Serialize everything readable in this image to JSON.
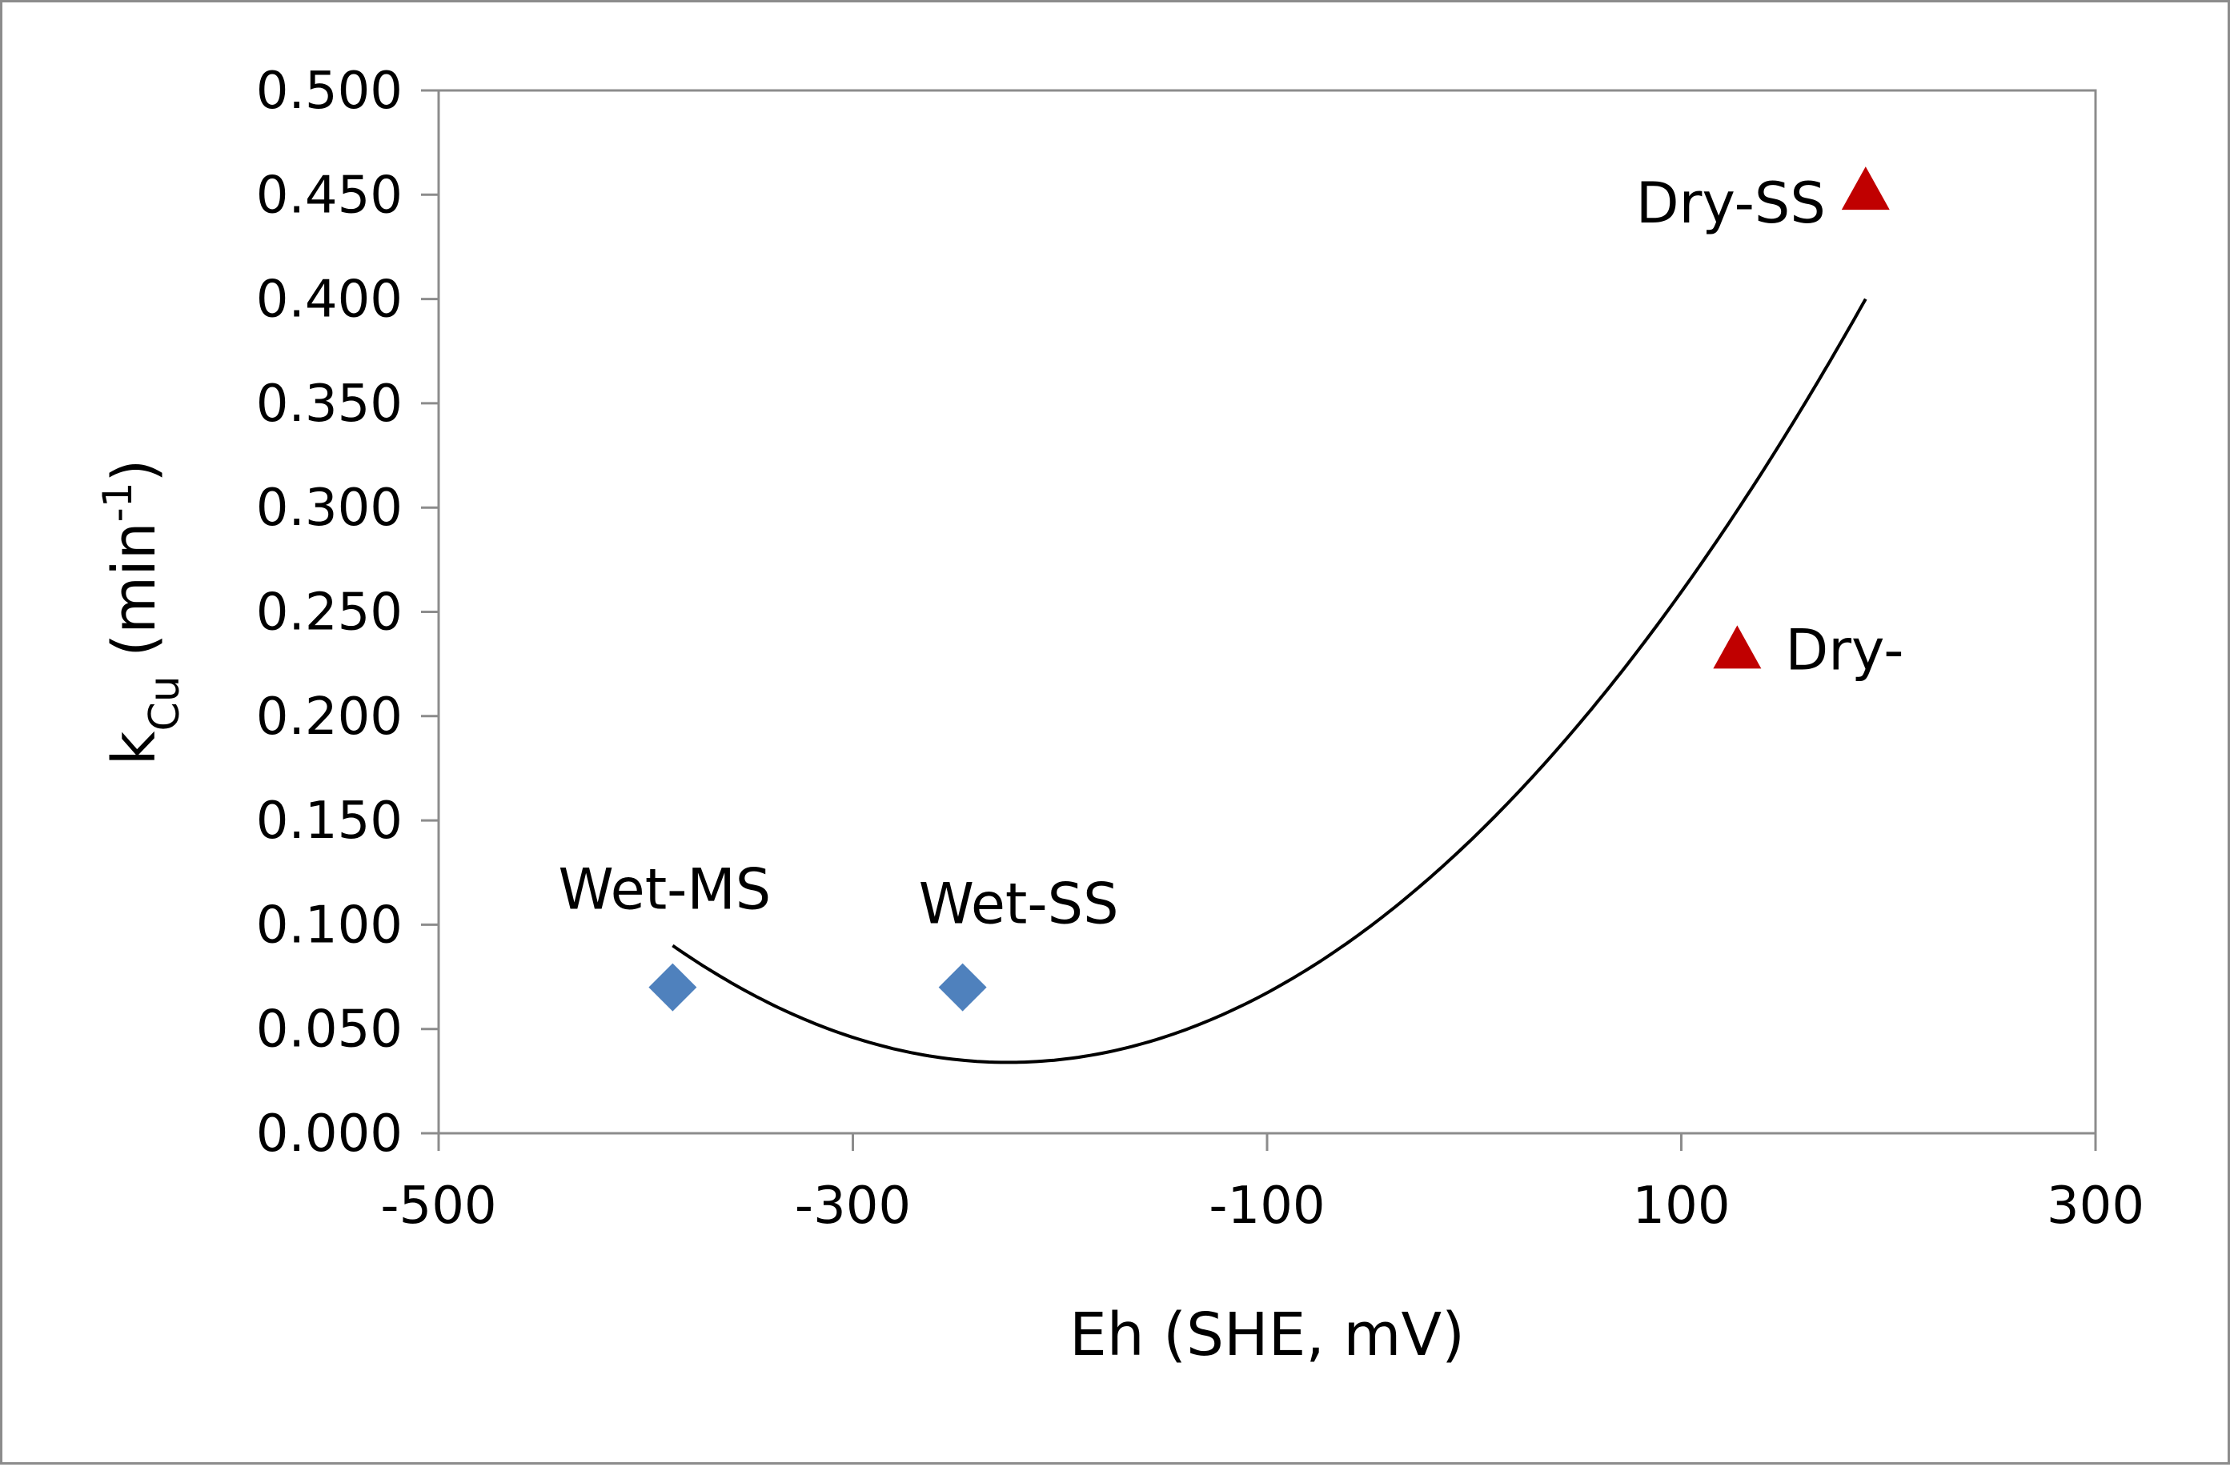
{
  "chart_data": {
    "type": "scatter",
    "title": "",
    "xlabel": "Eh (SHE, mV)",
    "ylabel_main": "k",
    "ylabel_sub": "Cu",
    "ylabel_unit_open": " (min",
    "ylabel_sup": "-1",
    "ylabel_unit_close": ")",
    "xlim": [
      -500,
      300
    ],
    "ylim": [
      0,
      0.5
    ],
    "xticks": [
      -500,
      -300,
      -100,
      100,
      300
    ],
    "xtick_labels": [
      "-500",
      "-300",
      "-100",
      "100",
      "300"
    ],
    "yticks": [
      0,
      0.05,
      0.1,
      0.15,
      0.2,
      0.25,
      0.3,
      0.35,
      0.4,
      0.45,
      0.5
    ],
    "ytick_labels": [
      "0.000",
      "0.050",
      "0.100",
      "0.150",
      "0.200",
      "0.250",
      "0.300",
      "0.350",
      "0.400",
      "0.450",
      "0.500"
    ],
    "grid": false,
    "series": [
      {
        "name": "Wet",
        "marker": "diamond",
        "color": "#4f81bd",
        "points": [
          {
            "x": -387,
            "y": 0.07,
            "label": "Wet-MS"
          },
          {
            "x": -247,
            "y": 0.07,
            "label": "Wet-SS"
          }
        ]
      },
      {
        "name": "Dry",
        "marker": "triangle",
        "color": "#c00000",
        "points": [
          {
            "x": 127,
            "y": 0.232,
            "label": "Dry-"
          },
          {
            "x": 189,
            "y": 0.452,
            "label": "Dry-SS"
          }
        ]
      }
    ],
    "trendline": {
      "type": "polynomial",
      "degree": 2,
      "color": "#000000",
      "points": [
        {
          "x": -387,
          "y": 0.09
        },
        {
          "x": -228,
          "y": 0.034
        },
        {
          "x": 189,
          "y": 0.4
        }
      ]
    }
  }
}
